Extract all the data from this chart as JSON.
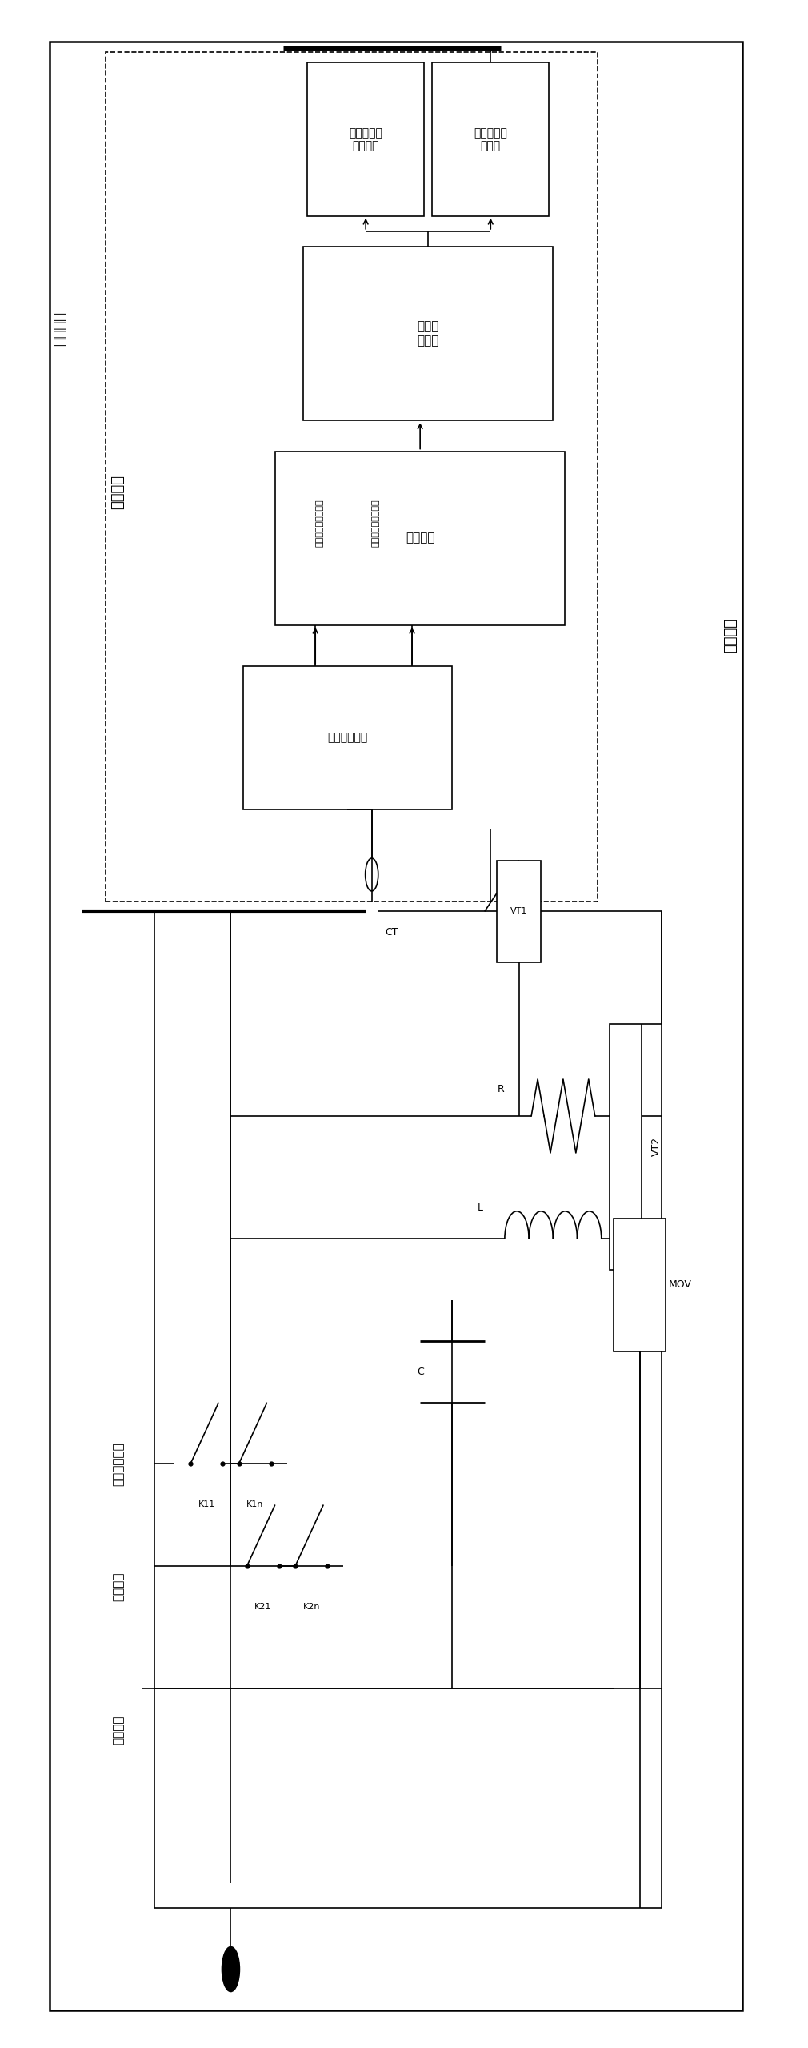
{
  "fig_width": 10.1,
  "fig_height": 25.58,
  "bg_color": "#ffffff",
  "ctrl_signal_label": "控制信号",
  "trigger_label": "触发信号",
  "ctrl_module_label": "控制模块",
  "box_dc_fault1": {
    "label": "直流线路末\n发生故障"
  },
  "box_dc_fault2": {
    "label": "直流线路发\n生故障"
  },
  "box_logic": {
    "label": "逻辑判\n断单元"
  },
  "box_compare": {
    "label": "比较单元"
  },
  "box_threshold": {
    "label": "阈值设置单元"
  },
  "label_compare_low": "比较单元输出低电平",
  "label_compare_high": "比较单元输出高电平",
  "branch_mech": "机械开关支路",
  "branch_osc": "振荡支路",
  "branch_absorb": "吸收支路",
  "comp_CT": "CT",
  "comp_VT1": "VT1",
  "comp_VT2": "VT2",
  "comp_R": "R",
  "comp_L": "L",
  "comp_C": "C",
  "comp_MOV": "MOV",
  "comp_K11": "K11",
  "comp_K1n": "K1n",
  "comp_K21": "K21",
  "comp_K2n": "K2n"
}
